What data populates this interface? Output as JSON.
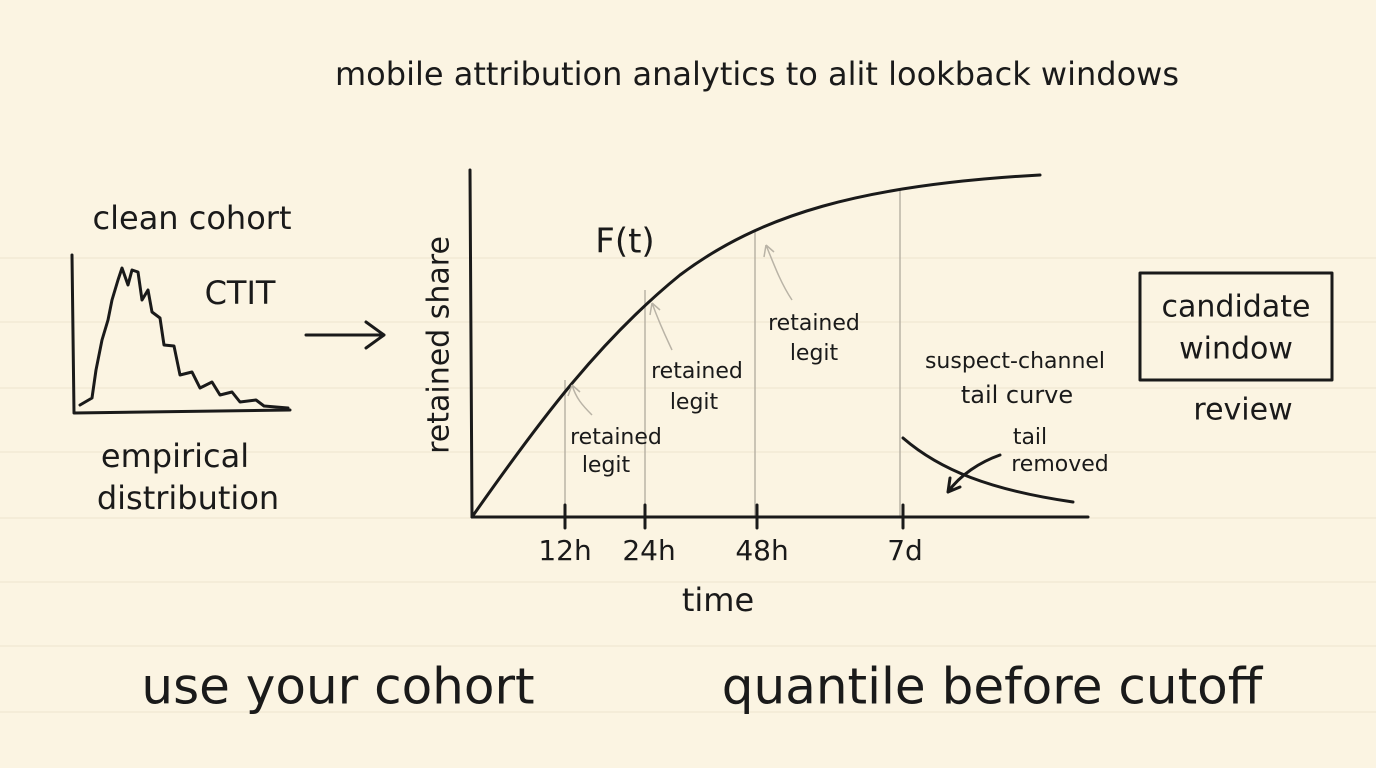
{
  "title": "mobile attribution analytics to alit lookback windows",
  "left_panel": {
    "heading": "clean cohort",
    "label": "CTIT",
    "caption": [
      "empirical",
      "distribution"
    ]
  },
  "main_chart": {
    "y_axis_label": "retained share",
    "curve_label": "F(t)",
    "x_axis_label": "time",
    "x_ticks": [
      "12h",
      "24h",
      "48h",
      "7d"
    ],
    "annotations": [
      [
        "retained",
        "legit"
      ],
      [
        "retained",
        "legit"
      ],
      [
        "retained",
        "legit"
      ]
    ],
    "tail_label": [
      "suspect-channel",
      "tail curve"
    ],
    "tail_note": [
      "tail",
      "removed"
    ]
  },
  "candidate": {
    "box": [
      "candidate",
      "window"
    ],
    "caption": "review"
  },
  "footer": [
    "use your cohort",
    "quantile before cutoff"
  ]
}
